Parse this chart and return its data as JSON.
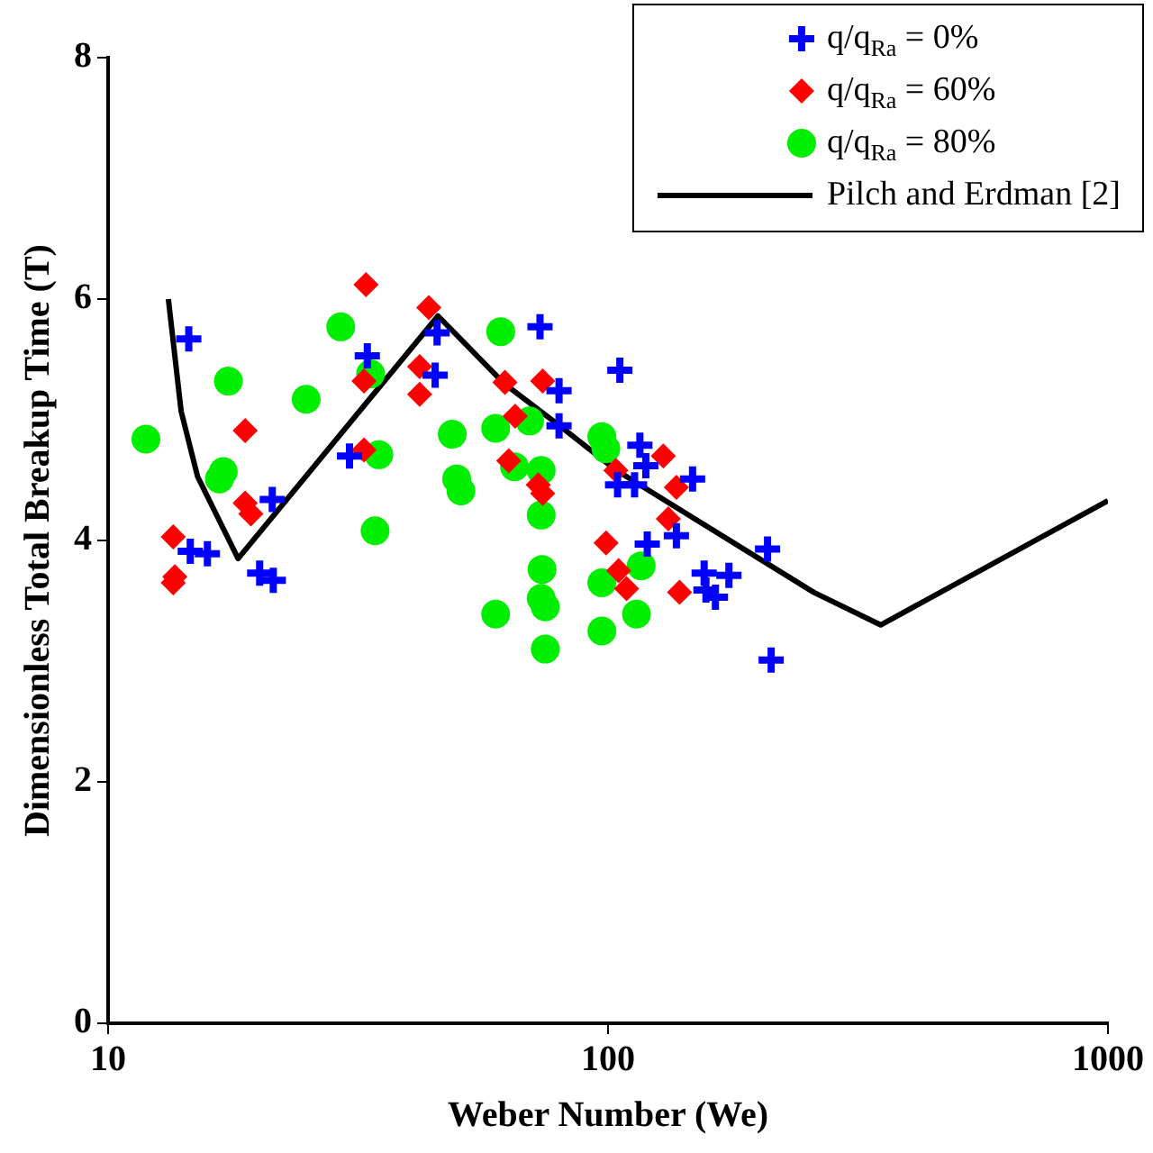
{
  "chart_data": {
    "type": "scatter",
    "xlabel": "Weber Number (We)",
    "ylabel": "Dimensionless Total Breakup Time (T)",
    "log": "x",
    "xlim": [
      10,
      1000
    ],
    "xticks": [
      10,
      100,
      1000
    ],
    "ylim": [
      0,
      8
    ],
    "yticks": [
      0,
      2,
      4,
      6,
      8
    ],
    "grid": false,
    "legend": "top right",
    "series": [
      {
        "name": "q/q$_{Ra}$ = 0%",
        "color": "#0000ff",
        "marker": "cross",
        "x": [
          14.5,
          14.6,
          15.8,
          20.1,
          21.4,
          21.3,
          30.4,
          33.0,
          45.1,
          45.5,
          73.1,
          105.6,
          79.8,
          79.8,
          115.8,
          119,
          104.5,
          113,
          147.6,
          119.8,
          137,
          208.5,
          155.7,
          174.5,
          157,
          164,
          212
        ],
        "values": [
          5.67,
          3.91,
          3.89,
          3.73,
          3.67,
          4.34,
          4.7,
          5.53,
          5.37,
          5.72,
          5.77,
          5.41,
          5.24,
          4.95,
          4.79,
          4.62,
          4.46,
          4.46,
          4.51,
          3.97,
          4.04,
          3.93,
          3.73,
          3.71,
          3.59,
          3.53,
          3.01
        ]
      },
      {
        "name": "q/q$_{Ra}$ = 60%",
        "color": "#ff0000",
        "marker": "diamond",
        "x": [
          32.8,
          43.8,
          42.0,
          42.0,
          32.5,
          32.5,
          18.8,
          18.8,
          19.3,
          13.5,
          13.6,
          13.5,
          62.2,
          74,
          65.2,
          63.3,
          72.5,
          74,
          103.7,
          129,
          137,
          132,
          99.1,
          105,
          108.9,
          139
        ],
        "values": [
          6.12,
          5.93,
          5.44,
          5.21,
          5.32,
          4.75,
          4.91,
          4.31,
          4.22,
          4.03,
          3.7,
          3.65,
          5.31,
          5.32,
          5.03,
          4.66,
          4.46,
          4.39,
          4.58,
          4.7,
          4.44,
          4.18,
          3.98,
          3.75,
          3.6,
          3.57
        ]
      },
      {
        "name": "q/q$_{Ra}$ = 80%",
        "color": "#00ee00",
        "marker": "circle",
        "x": [
          11.9,
          17.4,
          17.0,
          16.7,
          24.9,
          29.2,
          33.5,
          34.8,
          34.2,
          61,
          48.8,
          59.6,
          69.7,
          97.2,
          99,
          65,
          73.5,
          49.8,
          50.8,
          73.5,
          73.8,
          73.5,
          74.9,
          59.6,
          97.2,
          116.5,
          114,
          97.2,
          74.9
        ],
        "values": [
          4.84,
          5.32,
          4.57,
          4.51,
          5.17,
          5.77,
          5.38,
          4.71,
          4.08,
          5.73,
          4.88,
          4.93,
          4.99,
          4.86,
          4.76,
          4.61,
          4.58,
          4.51,
          4.41,
          4.21,
          3.76,
          3.52,
          3.45,
          3.39,
          3.65,
          3.79,
          3.39,
          3.25,
          3.1
        ]
      },
      {
        "name": "Pilch and Erdman [2]",
        "type": "line",
        "color": "#000000",
        "marker": "none",
        "line_style": "solid",
        "x": [
          13.2,
          14,
          15.1,
          18.2,
          45.7,
          62,
          80,
          104,
          258,
          351,
          1000
        ],
        "values": [
          6.0,
          5.07,
          4.53,
          3.85,
          5.86,
          5.3,
          4.95,
          4.58,
          3.57,
          3.3,
          4.33
        ]
      }
    ]
  }
}
